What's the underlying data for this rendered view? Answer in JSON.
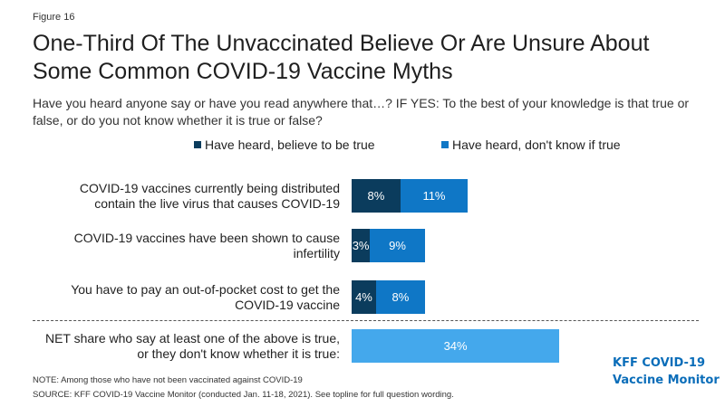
{
  "figure_label": "Figure 16",
  "title_line1": "One-Third Of The Unvaccinated Believe Or Are Unsure About",
  "title_line2": "Some Common COVID-19 Vaccine Myths",
  "subtitle": "Have you heard anyone say or have you read anywhere that…? IF YES: To the best of your knowledge is that true or false, or do you not know whether it is true or false?",
  "colors": {
    "dark": "#0b3c5d",
    "mid": "#0f77c6",
    "light": "#44a8ec"
  },
  "chart_data": {
    "type": "bar",
    "orientation": "horizontal",
    "stacked": true,
    "unit": "%",
    "series": [
      {
        "name": "Have heard, believe to be true",
        "color": "#0b3c5d"
      },
      {
        "name": "Have heard, don't know if true",
        "color": "#0f77c6"
      }
    ],
    "rows": [
      {
        "label_lines": [
          "COVID-19 vaccines currently being distributed",
          "contain the live virus that causes COVID-19"
        ],
        "values": [
          8,
          11
        ],
        "labels": [
          "8%",
          "11%"
        ]
      },
      {
        "label_lines": [
          "COVID-19 vaccines have been shown to cause",
          "infertility"
        ],
        "values": [
          3,
          9
        ],
        "labels": [
          "3%",
          "9%"
        ]
      },
      {
        "label_lines": [
          "You have to pay an out-of-pocket cost to get the",
          "COVID-19 vaccine"
        ],
        "values": [
          4,
          8
        ],
        "labels": [
          "4%",
          "8%"
        ]
      }
    ],
    "net": {
      "label_lines": [
        "NET share who say at least one of the above is true,",
        "or they don't know whether it is true:"
      ],
      "value": 34,
      "label": "34%",
      "color": "#44a8ec"
    }
  },
  "note": "NOTE: Among those who have not been vaccinated against COVID-19",
  "source": "SOURCE: KFF COVID-19 Vaccine Monitor (conducted Jan. 11-18, 2021). See topline for full question wording.",
  "brand_line1": "KFF COVID-19",
  "brand_line2": "Vaccine Monitor"
}
